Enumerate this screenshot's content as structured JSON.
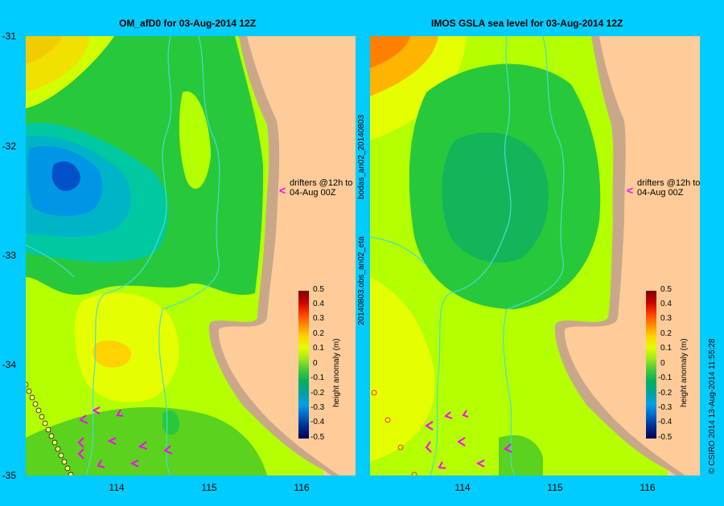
{
  "left_panel": {
    "title": "OM_afD0 for 03-Aug-2014 12Z",
    "annotation_line1": "drifters @12h to",
    "annotation_line2": "04-Aug 00Z"
  },
  "right_panel": {
    "title": "IMOS GSLA sea level  for 03-Aug-2014 12Z",
    "annotation_line1": "drifters @12h to",
    "annotation_line2": "04-Aug 00Z"
  },
  "latitude_labels": [
    "-31",
    "-32",
    "-33",
    "-34",
    "-35"
  ],
  "longitude_labels": [
    "114",
    "115",
    "116"
  ],
  "colorbar": {
    "label": "height anomaly (m)",
    "ticks": [
      "0.5",
      "0.4",
      "0.3",
      "0.2",
      "0.1",
      "0",
      "-0.1",
      "-0.2",
      "-0.3",
      "-0.4",
      "-0.5"
    ]
  },
  "side_text": {
    "left_upper": "bodas_an02_20140803",
    "left_lower": "20140803.obs_an02_eta",
    "right": "© CSIRO 2014   13-Aug-2014 11:55:28"
  },
  "colors": {
    "background": "#00ccff",
    "land": "#ffcc99",
    "coast": "#c8a888",
    "drifter_arrows": "#ff00ff",
    "rivers": "#40e0d0"
  }
}
